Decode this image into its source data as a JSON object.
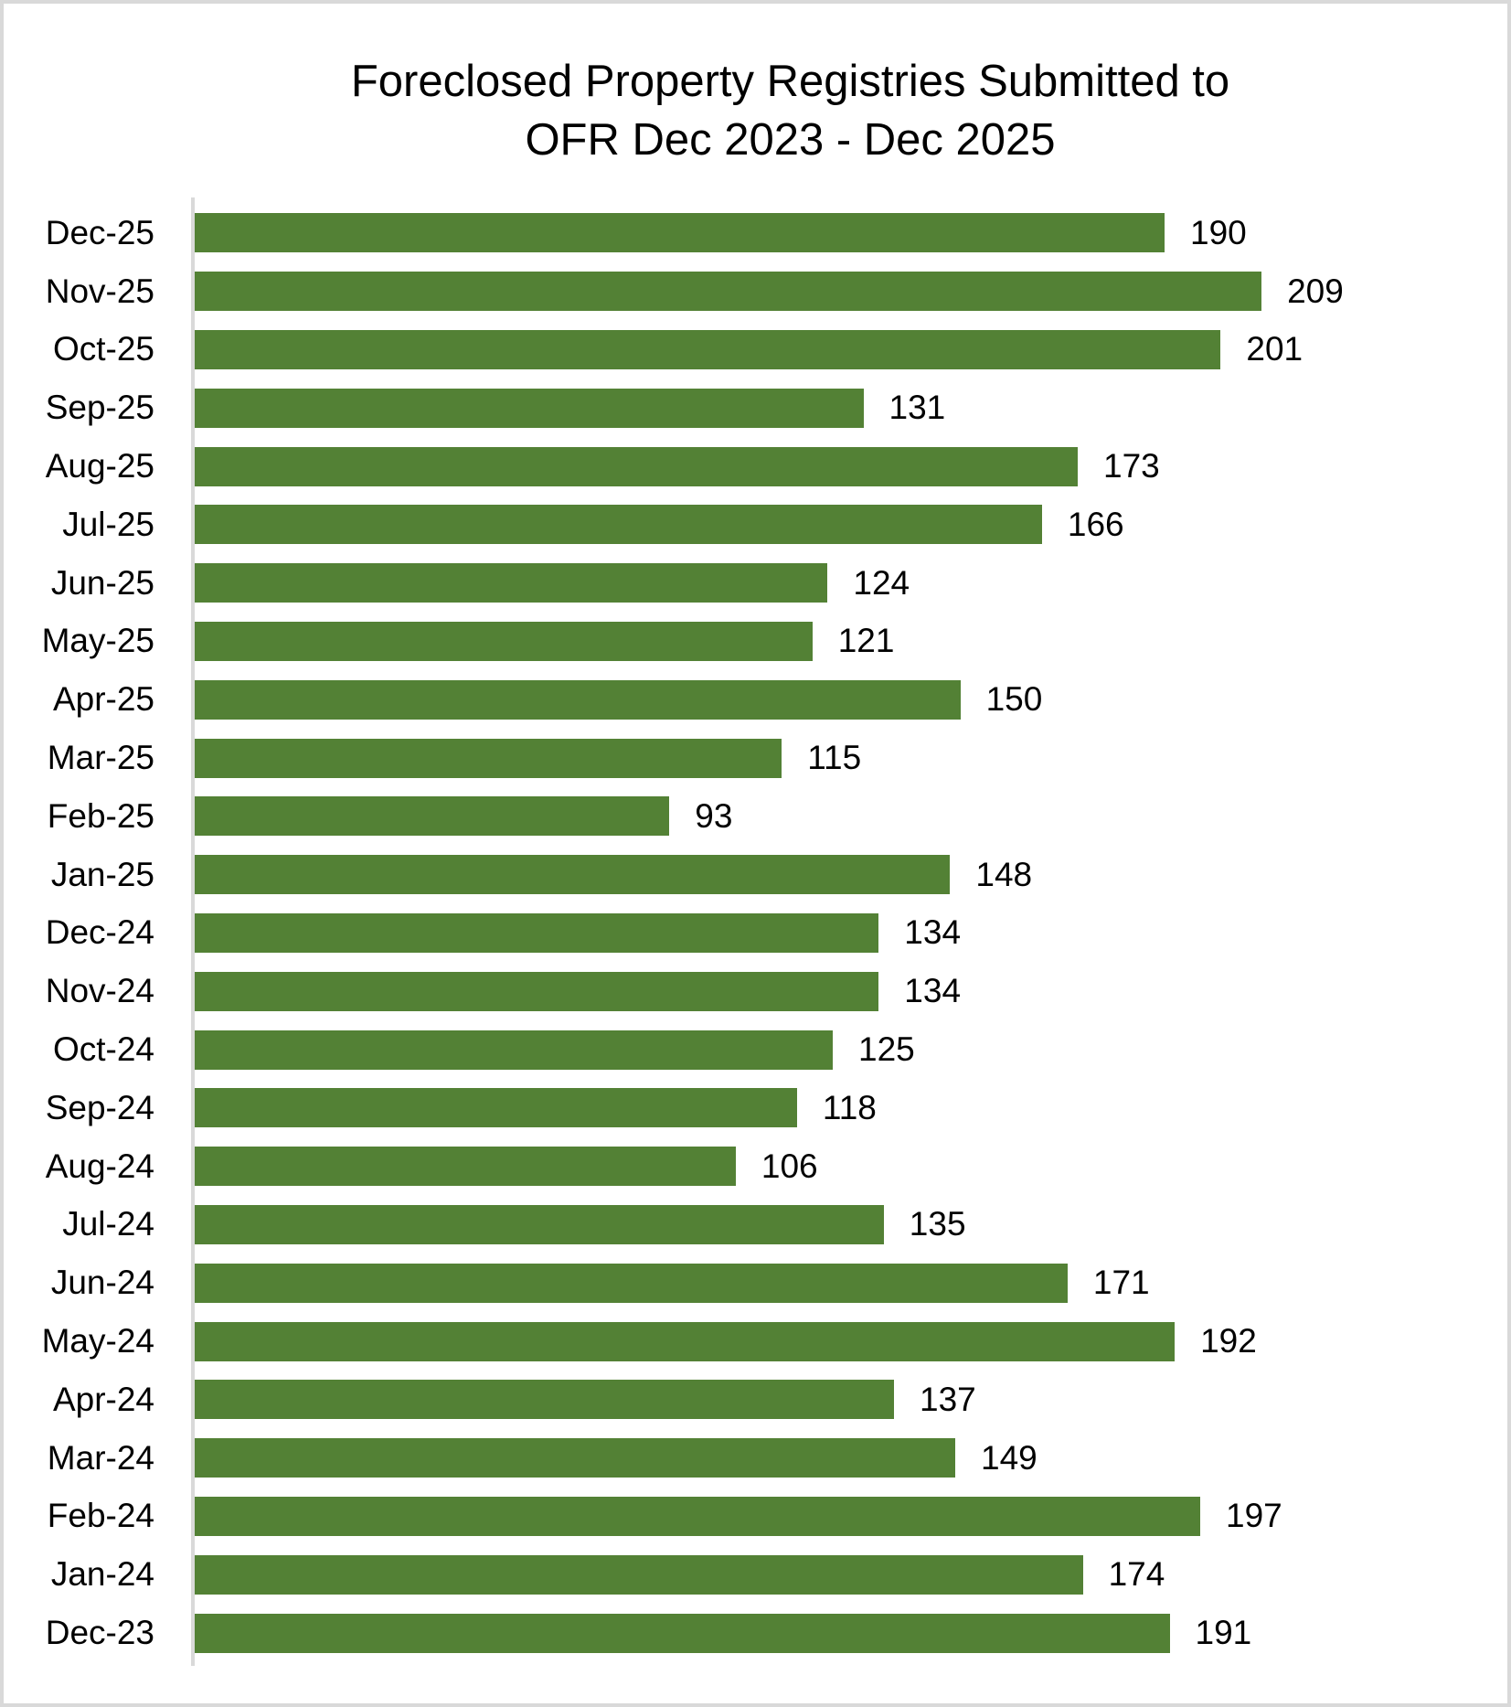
{
  "chart_data": {
    "type": "bar",
    "orientation": "horizontal",
    "title": "Foreclosed Property Registries Submitted to OFR Dec 2023 - Dec 2025",
    "title_lines": [
      "Foreclosed Property Registries Submitted to",
      "OFR Dec 2023 - Dec 2025"
    ],
    "categories": [
      "Dec-25",
      "Nov-25",
      "Oct-25",
      "Sep-25",
      "Aug-25",
      "Jul-25",
      "Jun-25",
      "May-25",
      "Apr-25",
      "Mar-25",
      "Feb-25",
      "Jan-25",
      "Dec-24",
      "Nov-24",
      "Oct-24",
      "Sep-24",
      "Aug-24",
      "Jul-24",
      "Jun-24",
      "May-24",
      "Apr-24",
      "Mar-24",
      "Feb-24",
      "Jan-24",
      "Dec-23"
    ],
    "values": [
      190,
      209,
      201,
      131,
      173,
      166,
      124,
      121,
      150,
      115,
      93,
      148,
      134,
      134,
      125,
      118,
      106,
      135,
      171,
      192,
      137,
      149,
      197,
      174,
      191
    ],
    "value_labels_shown": true,
    "xlabel": "",
    "ylabel": "",
    "xlim": [
      0,
      258
    ],
    "grid": false,
    "legend": false,
    "bar_color": "#538135",
    "axis_line_color": "#d9d9d9",
    "text_color": "#000000",
    "background_color": "#ffffff"
  }
}
